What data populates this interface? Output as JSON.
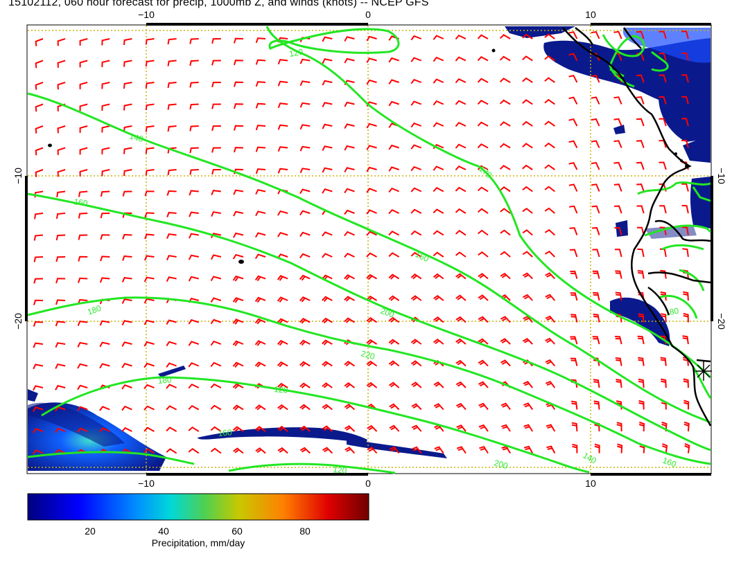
{
  "title": "15102112, 060 hour forecast for precip, 1000mb Z, and winds (knots) -- NCEP GFS",
  "axes": {
    "x_ticks": [
      "−10",
      "0",
      "10"
    ],
    "y_ticks": [
      "−10",
      "−20"
    ]
  },
  "contours": {
    "levels": [
      "120",
      "140",
      "160",
      "170",
      "160",
      "180",
      "200",
      "220",
      "180",
      "120",
      "160",
      "200",
      "120",
      "140",
      "160",
      "180"
    ],
    "color": "#22e622"
  },
  "colorbar": {
    "label": "Precipitation, mm/day",
    "ticks": [
      "20",
      "40",
      "60",
      "80"
    ],
    "colors": [
      "#00007f",
      "#0000ff",
      "#0080ff",
      "#00e0e0",
      "#30d060",
      "#c8c800",
      "#ff8000",
      "#e00000",
      "#800000"
    ]
  },
  "colors": {
    "barb": "#ff0000",
    "coast": "#000000",
    "grid": "#c8b400",
    "precip_dark": "#0a1a8c"
  }
}
